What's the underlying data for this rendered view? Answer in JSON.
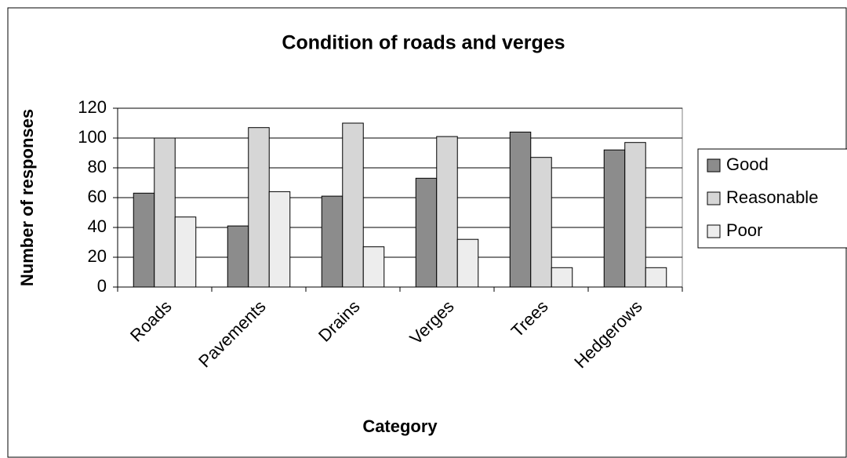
{
  "chart_data": {
    "type": "bar",
    "title": "Condition of roads and verges",
    "x_label": "Category",
    "y_label": "Number of responses",
    "categories": [
      "Roads",
      "Pavements",
      "Drains",
      "Verges",
      "Trees",
      "Hedgerows"
    ],
    "series": [
      {
        "name": "Good",
        "color": "#8c8c8c",
        "values": [
          63,
          41,
          61,
          73,
          104,
          92
        ]
      },
      {
        "name": "Reasonable",
        "color": "#d6d6d6",
        "values": [
          100,
          107,
          110,
          101,
          87,
          97
        ]
      },
      {
        "name": "Poor",
        "color": "#ededed",
        "values": [
          47,
          64,
          27,
          32,
          13,
          13
        ]
      }
    ],
    "ylim": [
      0,
      120
    ],
    "yticks": [
      0,
      20,
      40,
      60,
      80,
      100,
      120
    ],
    "grid": true,
    "legend": "right"
  }
}
